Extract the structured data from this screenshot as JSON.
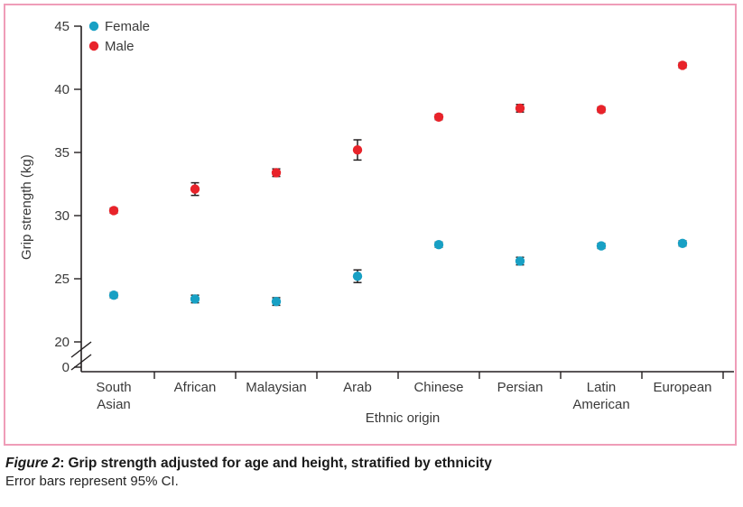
{
  "figure": {
    "caption_label": "Figure 2",
    "caption_colon": ":",
    "caption_title": "Grip strength adjusted for age and height, stratified by ethnicity",
    "caption_note": "Error bars represent 95% CI."
  },
  "colors": {
    "female": "#18a0c4",
    "male": "#e8232a",
    "frame_pink": "#ef9db8",
    "axis": "#231f20",
    "text": "#3a3a3a"
  },
  "chart_data": {
    "type": "scatter",
    "title": "",
    "xlabel": "Ethnic origin",
    "ylabel": "Grip strength (kg)",
    "categories": [
      "South Asian",
      "African",
      "Malaysian",
      "Arab",
      "Chinese",
      "Persian",
      "Latin American",
      "European"
    ],
    "yticks": [
      45,
      40,
      35,
      30,
      25,
      20,
      0
    ],
    "ylim": [
      20,
      45
    ],
    "axis_break": "y-axis broken between 0 and 20",
    "grid": false,
    "legend_position": "top-left inside",
    "error_bars": "95% CI",
    "series": [
      {
        "name": "Female",
        "color": "#18a0c4",
        "values": [
          23.7,
          23.4,
          23.2,
          25.2,
          27.7,
          26.4,
          27.6,
          27.8
        ],
        "ci95": [
          [
            23.5,
            23.9
          ],
          [
            23.1,
            23.7
          ],
          [
            22.9,
            23.5
          ],
          [
            24.7,
            25.7
          ],
          [
            27.5,
            27.9
          ],
          [
            26.1,
            26.7
          ],
          [
            27.4,
            27.8
          ],
          [
            27.6,
            28.0
          ]
        ]
      },
      {
        "name": "Male",
        "color": "#e8232a",
        "values": [
          30.4,
          32.1,
          33.4,
          35.2,
          37.8,
          38.5,
          38.4,
          41.9
        ],
        "ci95": [
          [
            30.2,
            30.6
          ],
          [
            31.6,
            32.6
          ],
          [
            33.1,
            33.7
          ],
          [
            34.4,
            36.0
          ],
          [
            37.6,
            38.0
          ],
          [
            38.2,
            38.8
          ],
          [
            38.2,
            38.6
          ],
          [
            41.7,
            42.1
          ]
        ]
      }
    ]
  }
}
